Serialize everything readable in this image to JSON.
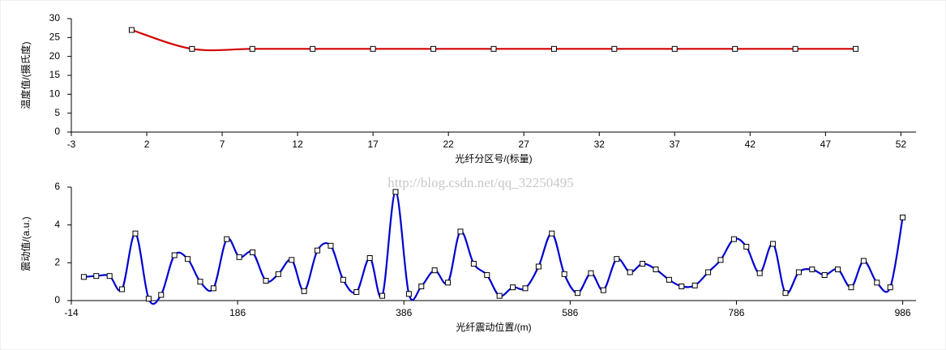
{
  "watermark": "http://blog.csdn.net/qq_32250495",
  "chart_data": [
    {
      "type": "line",
      "xlabel": "光纤分区号/(标量)",
      "ylabel": "温度值/(摄氏度)",
      "color": "#d40000",
      "x": [
        1,
        5,
        9,
        13,
        17,
        21,
        25,
        29,
        33,
        37,
        41,
        45,
        49
      ],
      "values": [
        27,
        22,
        22,
        22,
        22,
        22,
        22,
        22,
        22,
        22,
        22,
        22,
        22
      ],
      "xlim": [
        -3,
        53
      ],
      "xticks": [
        -3,
        2,
        7,
        12,
        17,
        22,
        27,
        32,
        37,
        42,
        47,
        52
      ],
      "ylim": [
        0,
        30
      ],
      "yticks": [
        0,
        5,
        10,
        15,
        20,
        25,
        30
      ]
    },
    {
      "type": "line",
      "xlabel": "光纤震动位置/(m)",
      "ylabel": "震动值/(a.u.)",
      "color": "#0000d0",
      "x": [
        1,
        16,
        32,
        47,
        63,
        79,
        94,
        110,
        126,
        141,
        157,
        173,
        188,
        204,
        220,
        235,
        251,
        266,
        282,
        298,
        313,
        329,
        345,
        360,
        376,
        392,
        407,
        423,
        439,
        454,
        470,
        486,
        501,
        517,
        532,
        548,
        564,
        579,
        595,
        611,
        626,
        642,
        658,
        673,
        689,
        705,
        720,
        736,
        752,
        767,
        783,
        798,
        814,
        830,
        845,
        861,
        877,
        892,
        908,
        924,
        939,
        955,
        971,
        986
      ],
      "values": [
        1.25,
        1.3,
        1.3,
        0.6,
        3.55,
        0.1,
        0.3,
        2.4,
        2.2,
        1.0,
        0.65,
        3.25,
        2.3,
        2.55,
        1.05,
        1.4,
        2.15,
        0.5,
        2.65,
        2.9,
        1.1,
        0.45,
        2.25,
        0.25,
        5.75,
        0.35,
        0.75,
        1.6,
        0.95,
        3.65,
        1.95,
        1.35,
        0.25,
        0.7,
        0.65,
        1.8,
        3.55,
        1.4,
        0.4,
        1.45,
        0.55,
        2.2,
        1.5,
        1.95,
        1.65,
        1.1,
        0.75,
        0.8,
        1.5,
        2.15,
        3.25,
        2.85,
        1.45,
        3.0,
        0.4,
        1.5,
        1.65,
        1.35,
        1.65,
        0.7,
        2.1,
        0.95,
        0.7,
        4.4
      ],
      "xlim": [
        -14,
        1002
      ],
      "xticks": [
        -14,
        186,
        386,
        586,
        786,
        986
      ],
      "ylim": [
        0,
        6
      ],
      "yticks": [
        0,
        2,
        4,
        6
      ]
    }
  ]
}
